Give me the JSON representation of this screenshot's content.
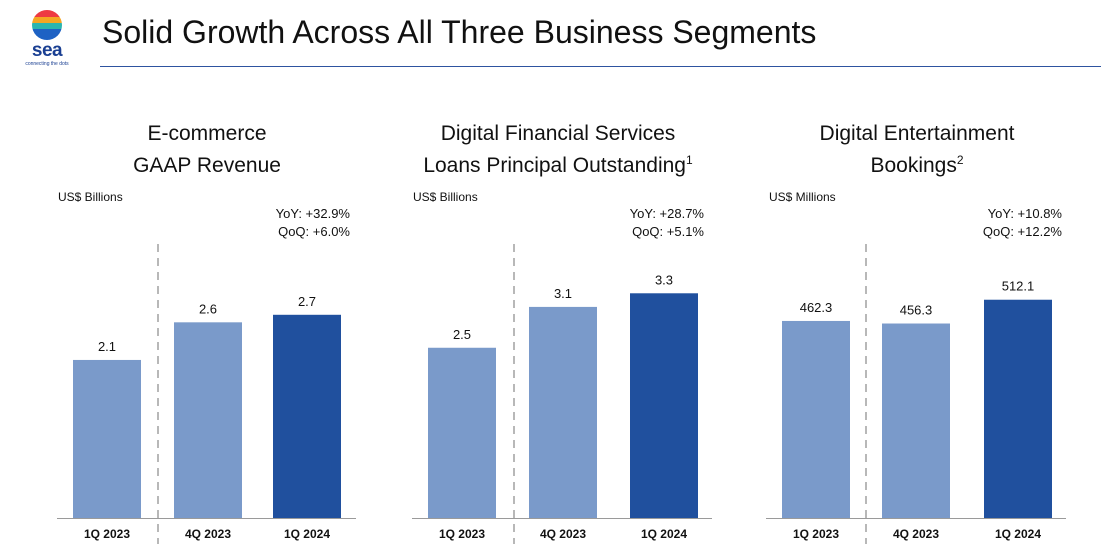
{
  "logo": {
    "word": "sea",
    "tagline": "connecting the dots"
  },
  "title": "Solid Growth Across All Three Business Segments",
  "colors": {
    "prior": "#7a9aca",
    "current": "#20509e",
    "rule": "#2e54a0",
    "divider": "#b8b8b8"
  },
  "chart_data": [
    {
      "type": "bar",
      "title_lines": [
        "E-commerce",
        "GAAP Revenue"
      ],
      "footnote": "",
      "unit": "US$ Billions",
      "growth": [
        "YoY: +32.9%",
        "QoQ: +6.0%"
      ],
      "categories": [
        "1Q 2023",
        "4Q 2023",
        "1Q 2024"
      ],
      "values": [
        2.1,
        2.6,
        2.7
      ],
      "value_labels": [
        "2.1",
        "2.6",
        "2.7"
      ],
      "highlight_index": 2,
      "ylim": [
        0,
        3.8
      ]
    },
    {
      "type": "bar",
      "title_lines": [
        "Digital Financial Services",
        "Loans Principal Outstanding"
      ],
      "footnote": "1",
      "unit": "US$ Billions",
      "growth": [
        "YoY: +28.7%",
        "QoQ: +5.1%"
      ],
      "categories": [
        "1Q 2023",
        "4Q 2023",
        "1Q 2024"
      ],
      "values": [
        2.5,
        3.1,
        3.3
      ],
      "value_labels": [
        "2.5",
        "3.1",
        "3.3"
      ],
      "highlight_index": 2,
      "ylim": [
        0,
        4.2
      ]
    },
    {
      "type": "bar",
      "title_lines": [
        "Digital Entertainment",
        "Bookings"
      ],
      "footnote": "2",
      "unit": "US$ Millions",
      "growth": [
        "YoY: +10.8%",
        "QoQ: +12.2%"
      ],
      "categories": [
        "1Q 2023",
        "4Q 2023",
        "1Q 2024"
      ],
      "values": [
        462.3,
        456.3,
        512.1
      ],
      "value_labels": [
        "462.3",
        "456.3",
        "512.1"
      ],
      "highlight_index": 2,
      "ylim": [
        0,
        671
      ]
    }
  ]
}
